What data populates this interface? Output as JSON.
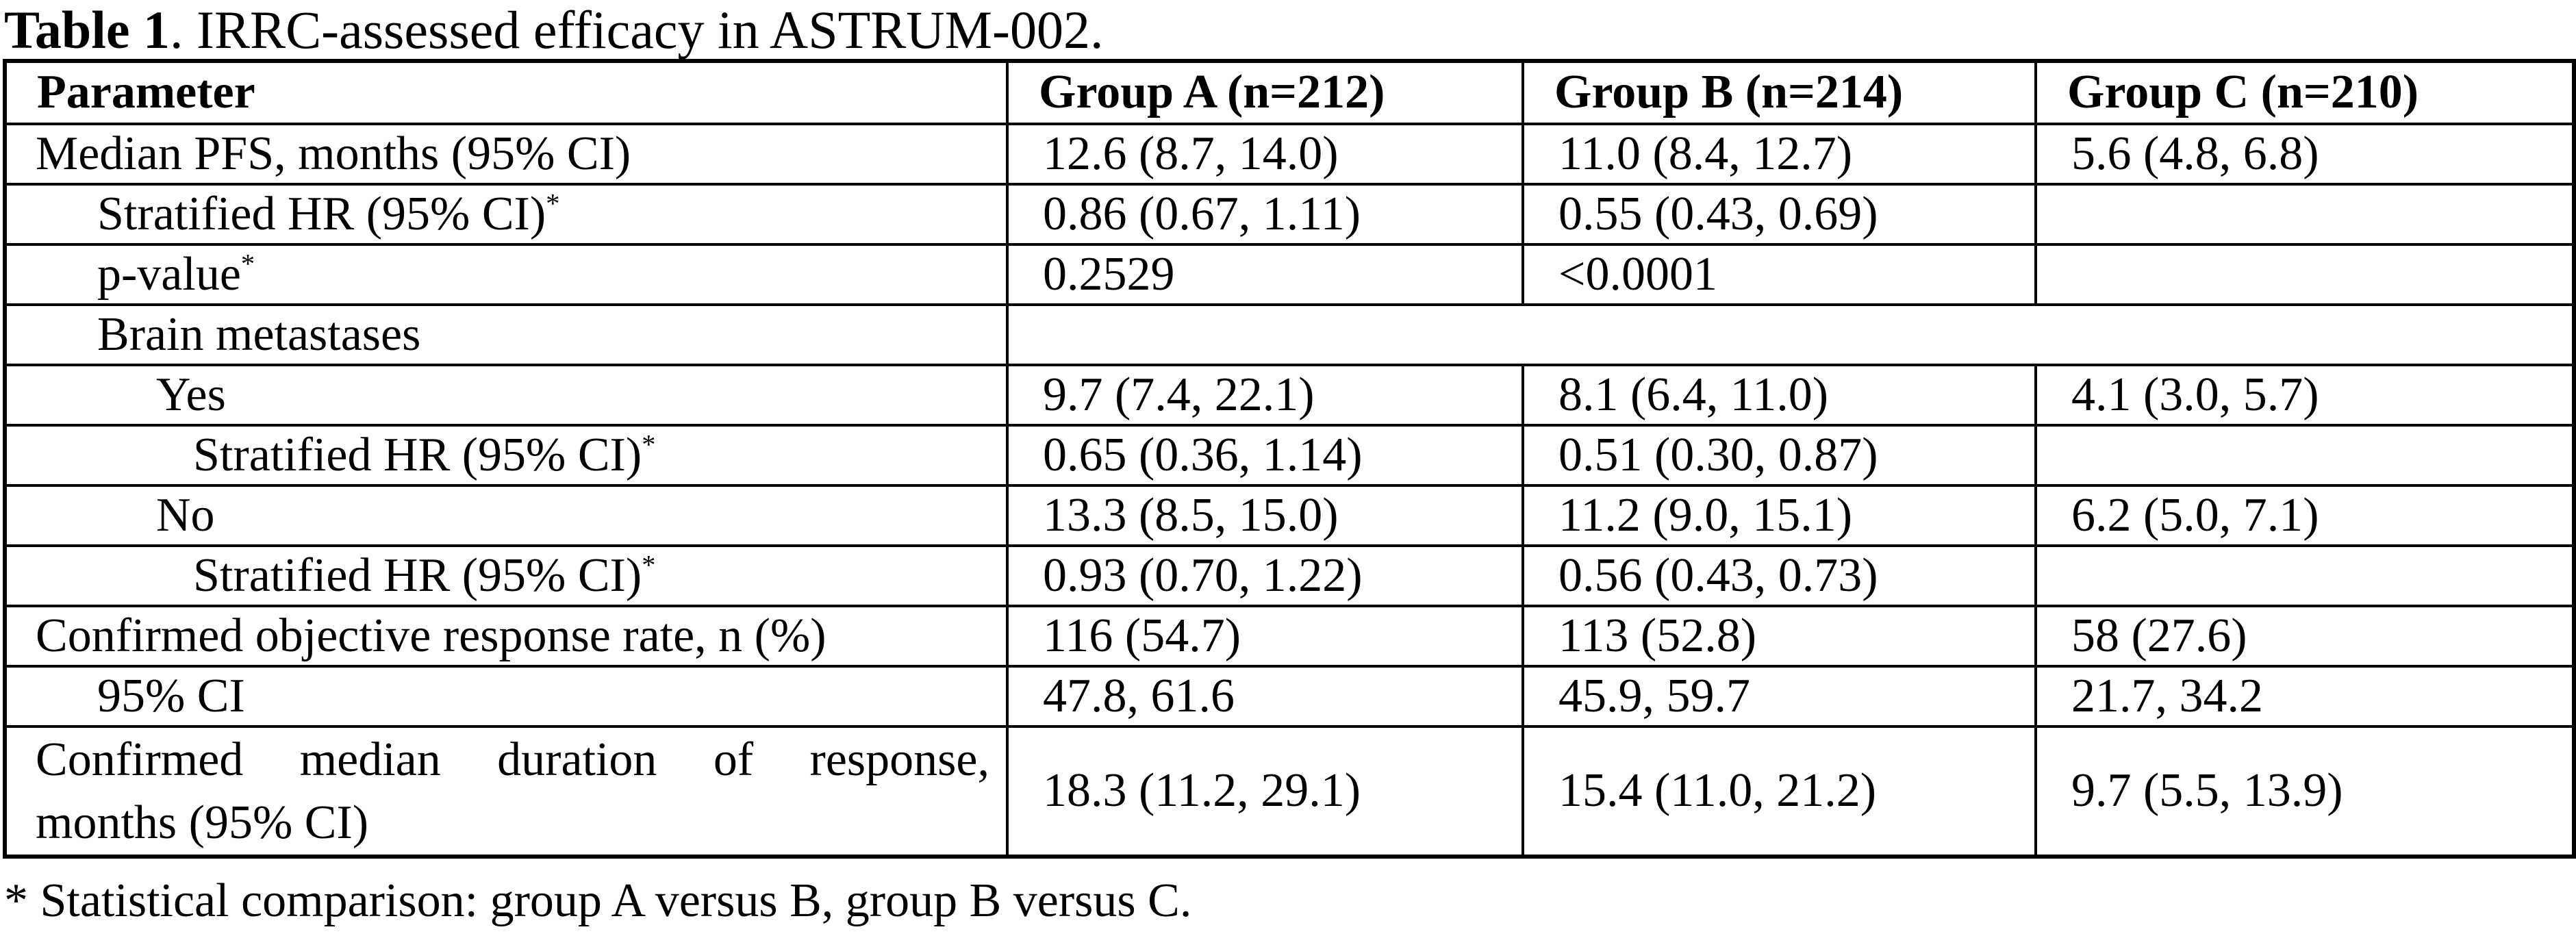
{
  "title": {
    "bold": "Table 1",
    "rest": ". IRRC-assessed efficacy in ASTRUM-002."
  },
  "table": {
    "columns": [
      "Parameter",
      "Group A (n=212)",
      "Group B (n=214)",
      "Group C (n=210)"
    ],
    "rows": [
      {
        "param": "Median PFS, months (95% CI)",
        "indent": 0,
        "a": "12.6 (8.7, 14.0)",
        "b": "11.0 (8.4, 12.7)",
        "c": "5.6 (4.8, 6.8)"
      },
      {
        "param": "Stratified HR (95% CI)",
        "sup": "*",
        "indent": 1,
        "a": "0.86 (0.67, 1.11)",
        "b": "0.55 (0.43, 0.69)",
        "c": ""
      },
      {
        "param": "p-value",
        "sup": "*",
        "indent": 1,
        "a": "0.2529",
        "b": "<0.0001",
        "c": ""
      },
      {
        "param": "Brain metastases",
        "indent": 1,
        "merged_empty": ""
      },
      {
        "param": "Yes",
        "indent": 2,
        "a": "9.7 (7.4, 22.1)",
        "b": "8.1 (6.4, 11.0)",
        "c": "4.1 (3.0, 5.7)"
      },
      {
        "param": "Stratified HR (95% CI)",
        "sup": "*",
        "indent": 3,
        "a": "0.65 (0.36, 1.14)",
        "b": "0.51 (0.30, 0.87)",
        "c": ""
      },
      {
        "param": "No",
        "indent": 2,
        "a": "13.3 (8.5, 15.0)",
        "b": "11.2 (9.0, 15.1)",
        "c": "6.2 (5.0, 7.1)"
      },
      {
        "param": "Stratified HR (95% CI)",
        "sup": "*",
        "indent": 3,
        "a": "0.93 (0.70, 1.22)",
        "b": "0.56 (0.43, 0.73)",
        "c": ""
      },
      {
        "param": "Confirmed objective response rate, n (%)",
        "indent": 0,
        "a": "116 (54.7)",
        "b": "113 (52.8)",
        "c": "58 (27.6)"
      },
      {
        "param": "95% CI",
        "indent": 1,
        "a": "47.8, 61.6",
        "b": "45.9, 59.7",
        "c": "21.7, 34.2"
      },
      {
        "param_line1": "Confirmed median duration of response,",
        "param_line2": "months (95% CI)",
        "indent": 0,
        "a": "18.3 (11.2, 29.1)",
        "b": "15.4 (11.0, 21.2)",
        "c": "9.7 (5.5, 13.9)"
      }
    ]
  },
  "footnote": "* Statistical comparison: group A versus B, group B versus C."
}
